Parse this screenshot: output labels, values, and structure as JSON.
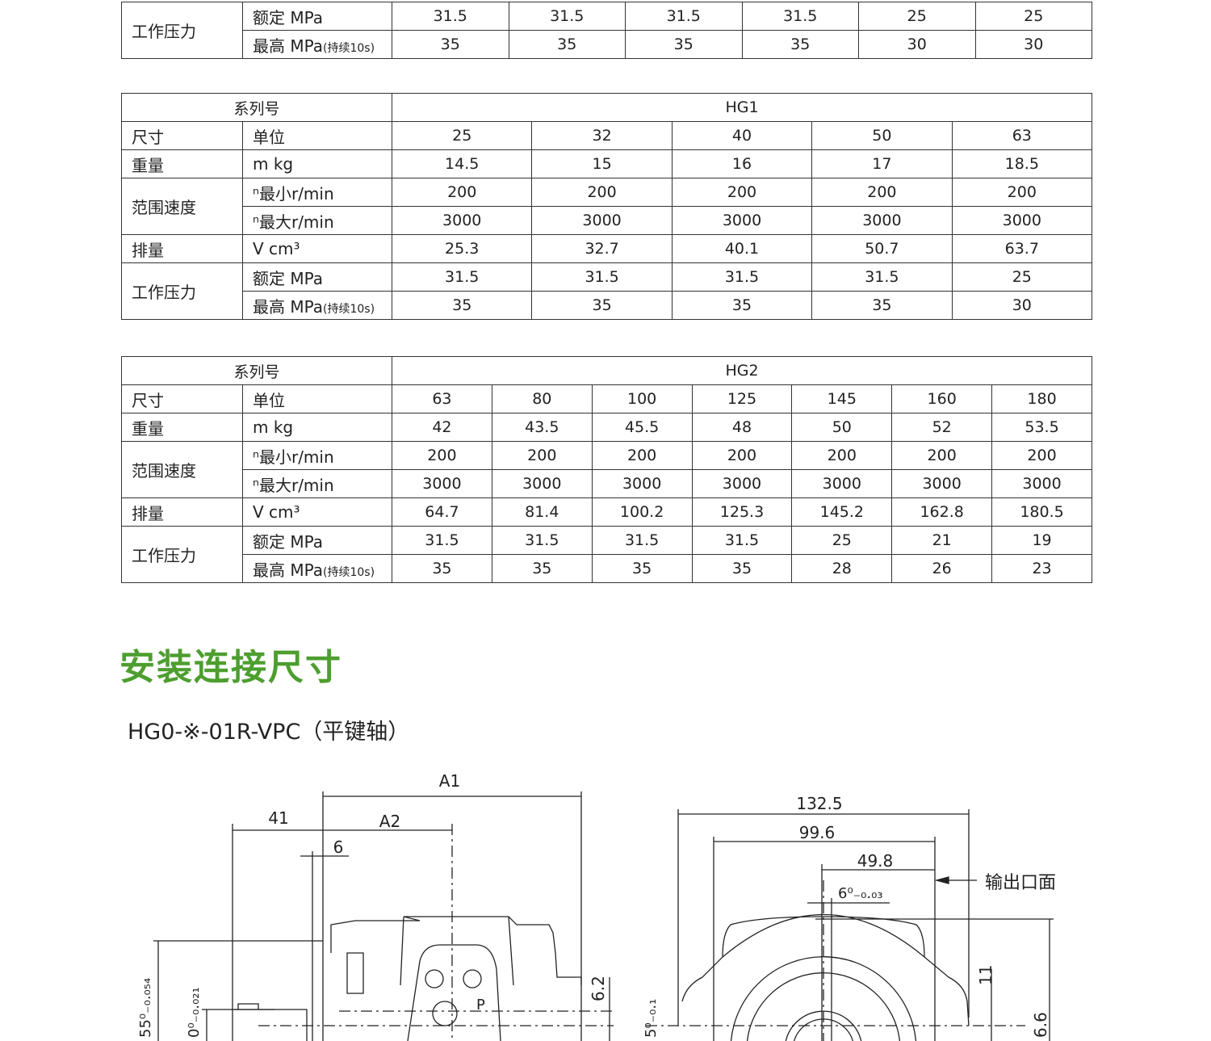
{
  "tables": [
    {
      "id": "t0",
      "series": null,
      "cols": 6,
      "rows": [
        {
          "group": "工作压力",
          "span": 2,
          "unit": "额定 MPa",
          "values": [
            "31.5",
            "31.5",
            "31.5",
            "31.5",
            "25",
            "25"
          ]
        },
        {
          "unit": "最高 MPa",
          "unit_note": "(持续10s)",
          "values": [
            "35",
            "35",
            "35",
            "35",
            "30",
            "30"
          ]
        }
      ]
    },
    {
      "id": "t1",
      "series_label": "系列号",
      "series": "HG1",
      "cols": 5,
      "rows": [
        {
          "group": "尺寸",
          "span": 1,
          "unit": "单位",
          "values": [
            "25",
            "32",
            "40",
            "50",
            "63"
          ]
        },
        {
          "group": "重量",
          "span": 1,
          "unit": "m kg",
          "values": [
            "14.5",
            "15",
            "16",
            "17",
            "18.5"
          ]
        },
        {
          "group": "范围速度",
          "span": 2,
          "unit": "ⁿ最小r/min",
          "values": [
            "200",
            "200",
            "200",
            "200",
            "200"
          ]
        },
        {
          "unit": "ⁿ最大r/min",
          "values": [
            "3000",
            "3000",
            "3000",
            "3000",
            "3000"
          ]
        },
        {
          "group": "排量",
          "span": 1,
          "unit": "V cm³",
          "values": [
            "25.3",
            "32.7",
            "40.1",
            "50.7",
            "63.7"
          ]
        },
        {
          "group": "工作压力",
          "span": 2,
          "unit": "额定 MPa",
          "values": [
            "31.5",
            "31.5",
            "31.5",
            "31.5",
            "25"
          ]
        },
        {
          "unit": "最高 MPa",
          "unit_note": "(持续10s)",
          "values": [
            "35",
            "35",
            "35",
            "35",
            "30"
          ]
        }
      ]
    },
    {
      "id": "t2",
      "series_label": "系列号",
      "series": "HG2",
      "cols": 7,
      "rows": [
        {
          "group": "尺寸",
          "span": 1,
          "unit": "单位",
          "values": [
            "63",
            "80",
            "100",
            "125",
            "145",
            "160",
            "180"
          ]
        },
        {
          "group": "重量",
          "span": 1,
          "unit": "m kg",
          "values": [
            "42",
            "43.5",
            "45.5",
            "48",
            "50",
            "52",
            "53.5"
          ]
        },
        {
          "group": "范围速度",
          "span": 2,
          "unit": "ⁿ最小r/min",
          "values": [
            "200",
            "200",
            "200",
            "200",
            "200",
            "200",
            "200"
          ]
        },
        {
          "unit": "ⁿ最大r/min",
          "values": [
            "3000",
            "3000",
            "3000",
            "3000",
            "3000",
            "3000",
            "3000"
          ]
        },
        {
          "group": "排量",
          "span": 1,
          "unit": "V cm³",
          "values": [
            "64.7",
            "81.4",
            "100.2",
            "125.3",
            "145.2",
            "162.8",
            "180.5"
          ]
        },
        {
          "group": "工作压力",
          "span": 2,
          "unit": "额定 MPa",
          "values": [
            "31.5",
            "31.5",
            "31.5",
            "31.5",
            "25",
            "21",
            "19"
          ]
        },
        {
          "unit": "最高 MPa",
          "unit_note": "(持续10s)",
          "values": [
            "35",
            "35",
            "35",
            "35",
            "28",
            "26",
            "23"
          ]
        }
      ]
    }
  ],
  "section_title": "安装连接尺寸",
  "subtitle": "HG0-※-01R-VPC（平键轴）",
  "drawing": {
    "side": {
      "a1": "A1",
      "a2": "A2",
      "d41": "41",
      "d6": "6",
      "d62": "6.2",
      "p": "P",
      "tol1": "55⁰₋₀.₀₅₄",
      "tol2": "0⁰₋₀.₀₂₁"
    },
    "front": {
      "d1325": "132.5",
      "d996": "99.6",
      "d498": "49.8",
      "key": "6⁰₋₀.₀₃",
      "outlet": "输出口面",
      "d11": "11",
      "d66": "6.6",
      "tol": "5⁰₋₀.₁"
    }
  }
}
